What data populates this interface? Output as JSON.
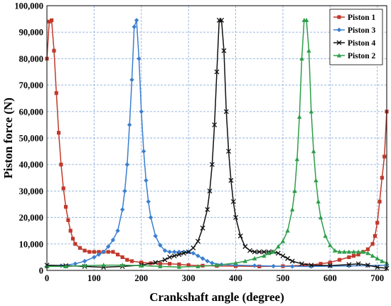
{
  "chart_data": {
    "type": "line",
    "xlabel": "Crankshaft angle (degree)",
    "ylabel": "Piston force (N)",
    "xlim": [
      0,
      720
    ],
    "ylim": [
      0,
      100000
    ],
    "x_ticks": [
      0,
      100,
      200,
      300,
      400,
      500,
      600,
      700
    ],
    "y_ticks": [
      0,
      10000,
      20000,
      30000,
      40000,
      50000,
      60000,
      70000,
      80000,
      90000,
      100000
    ],
    "x_tick_labels": [
      "0",
      "100",
      "200",
      "300",
      "400",
      "500",
      "600",
      "700"
    ],
    "y_tick_labels": [
      "0",
      "10,000",
      "20,000",
      "30,000",
      "40,000",
      "50,000",
      "60,000",
      "70,000",
      "80,000",
      "90,000",
      "100,000"
    ],
    "grid": true,
    "legend_position": "top-right",
    "series": [
      {
        "name": "Piston 1",
        "color": "#c0392b",
        "marker": "square",
        "points": [
          [
            0,
            80000
          ],
          [
            5,
            94000
          ],
          [
            10,
            94500
          ],
          [
            15,
            83000
          ],
          [
            20,
            67000
          ],
          [
            25,
            52000
          ],
          [
            30,
            40000
          ],
          [
            35,
            31000
          ],
          [
            40,
            24000
          ],
          [
            45,
            19000
          ],
          [
            50,
            15000
          ],
          [
            55,
            12000
          ],
          [
            60,
            10000
          ],
          [
            70,
            8500
          ],
          [
            80,
            7500
          ],
          [
            90,
            7000
          ],
          [
            100,
            7000
          ],
          [
            110,
            7000
          ],
          [
            120,
            7000
          ],
          [
            130,
            7000
          ],
          [
            140,
            7000
          ],
          [
            150,
            6000
          ],
          [
            160,
            5000
          ],
          [
            170,
            4000
          ],
          [
            180,
            3500
          ],
          [
            200,
            3000
          ],
          [
            220,
            2700
          ],
          [
            240,
            2500
          ],
          [
            260,
            2500
          ],
          [
            280,
            2300
          ],
          [
            300,
            2000
          ],
          [
            330,
            1800
          ],
          [
            360,
            1700
          ],
          [
            400,
            1600
          ],
          [
            450,
            1500
          ],
          [
            500,
            1600
          ],
          [
            550,
            2000
          ],
          [
            580,
            2500
          ],
          [
            600,
            3000
          ],
          [
            620,
            4000
          ],
          [
            640,
            5000
          ],
          [
            650,
            5500
          ],
          [
            660,
            6000
          ],
          [
            670,
            7000
          ],
          [
            680,
            8000
          ],
          [
            690,
            10000
          ],
          [
            695,
            13000
          ],
          [
            700,
            18000
          ],
          [
            705,
            26000
          ],
          [
            710,
            35000
          ],
          [
            715,
            43000
          ],
          [
            720,
            60000
          ]
        ]
      },
      {
        "name": "Piston 3",
        "color": "#3a7fd0",
        "marker": "diamond",
        "points": [
          [
            0,
            1500
          ],
          [
            30,
            1800
          ],
          [
            60,
            2500
          ],
          [
            80,
            3500
          ],
          [
            100,
            5000
          ],
          [
            110,
            6000
          ],
          [
            120,
            7000
          ],
          [
            130,
            9000
          ],
          [
            140,
            11500
          ],
          [
            150,
            15000
          ],
          [
            160,
            23000
          ],
          [
            165,
            30000
          ],
          [
            170,
            40000
          ],
          [
            175,
            55000
          ],
          [
            180,
            72000
          ],
          [
            185,
            92000
          ],
          [
            190,
            94500
          ],
          [
            195,
            80000
          ],
          [
            200,
            60000
          ],
          [
            205,
            45000
          ],
          [
            210,
            34000
          ],
          [
            215,
            26000
          ],
          [
            220,
            20000
          ],
          [
            230,
            13000
          ],
          [
            240,
            9500
          ],
          [
            250,
            7500
          ],
          [
            260,
            7000
          ],
          [
            270,
            7000
          ],
          [
            280,
            7000
          ],
          [
            290,
            7000
          ],
          [
            300,
            7000
          ],
          [
            310,
            6500
          ],
          [
            320,
            5500
          ],
          [
            330,
            4500
          ],
          [
            340,
            3500
          ],
          [
            350,
            2800
          ],
          [
            370,
            2200
          ],
          [
            400,
            2000
          ],
          [
            440,
            1800
          ],
          [
            480,
            1600
          ],
          [
            520,
            1500
          ],
          [
            560,
            1500
          ],
          [
            600,
            1600
          ],
          [
            640,
            1700
          ],
          [
            680,
            1800
          ],
          [
            720,
            2000
          ]
        ]
      },
      {
        "name": "Piston 4",
        "color": "#111111",
        "marker": "x",
        "points": [
          [
            0,
            2000
          ],
          [
            40,
            1800
          ],
          [
            80,
            1500
          ],
          [
            120,
            1200
          ],
          [
            160,
            1500
          ],
          [
            200,
            2000
          ],
          [
            230,
            3000
          ],
          [
            250,
            4000
          ],
          [
            260,
            5000
          ],
          [
            270,
            5500
          ],
          [
            280,
            6000
          ],
          [
            290,
            6500
          ],
          [
            300,
            7000
          ],
          [
            310,
            8500
          ],
          [
            320,
            11000
          ],
          [
            330,
            16000
          ],
          [
            340,
            23000
          ],
          [
            345,
            30000
          ],
          [
            350,
            40000
          ],
          [
            355,
            55000
          ],
          [
            360,
            75000
          ],
          [
            365,
            94500
          ],
          [
            370,
            94500
          ],
          [
            375,
            83000
          ],
          [
            380,
            60000
          ],
          [
            385,
            45000
          ],
          [
            390,
            34000
          ],
          [
            395,
            26000
          ],
          [
            400,
            20000
          ],
          [
            410,
            13000
          ],
          [
            420,
            9000
          ],
          [
            430,
            7500
          ],
          [
            440,
            7000
          ],
          [
            450,
            7000
          ],
          [
            460,
            7000
          ],
          [
            470,
            7000
          ],
          [
            480,
            7000
          ],
          [
            490,
            6500
          ],
          [
            500,
            5500
          ],
          [
            510,
            4500
          ],
          [
            520,
            3500
          ],
          [
            540,
            2500
          ],
          [
            560,
            2000
          ],
          [
            600,
            1800
          ],
          [
            640,
            2200
          ],
          [
            660,
            2500
          ],
          [
            680,
            2000
          ],
          [
            700,
            1200
          ],
          [
            720,
            800
          ]
        ]
      },
      {
        "name": "Piston 2",
        "color": "#2e9e4a",
        "marker": "triangle",
        "points": [
          [
            0,
            1500
          ],
          [
            40,
            1500
          ],
          [
            80,
            1800
          ],
          [
            120,
            2000
          ],
          [
            160,
            2000
          ],
          [
            200,
            1800
          ],
          [
            240,
            1500
          ],
          [
            280,
            1300
          ],
          [
            320,
            1500
          ],
          [
            360,
            2000
          ],
          [
            400,
            2800
          ],
          [
            420,
            3500
          ],
          [
            440,
            4500
          ],
          [
            460,
            5500
          ],
          [
            470,
            6500
          ],
          [
            480,
            7000
          ],
          [
            490,
            9000
          ],
          [
            500,
            11000
          ],
          [
            510,
            15000
          ],
          [
            520,
            23000
          ],
          [
            525,
            30000
          ],
          [
            530,
            42000
          ],
          [
            535,
            58000
          ],
          [
            540,
            80000
          ],
          [
            545,
            94500
          ],
          [
            550,
            94500
          ],
          [
            555,
            83000
          ],
          [
            560,
            60000
          ],
          [
            565,
            45000
          ],
          [
            570,
            34000
          ],
          [
            575,
            26000
          ],
          [
            580,
            20000
          ],
          [
            590,
            13000
          ],
          [
            600,
            9500
          ],
          [
            610,
            7500
          ],
          [
            620,
            7000
          ],
          [
            630,
            7000
          ],
          [
            640,
            7000
          ],
          [
            650,
            7000
          ],
          [
            660,
            7000
          ],
          [
            670,
            7000
          ],
          [
            680,
            6500
          ],
          [
            690,
            5500
          ],
          [
            700,
            4500
          ],
          [
            710,
            3500
          ],
          [
            720,
            2800
          ]
        ]
      }
    ]
  }
}
